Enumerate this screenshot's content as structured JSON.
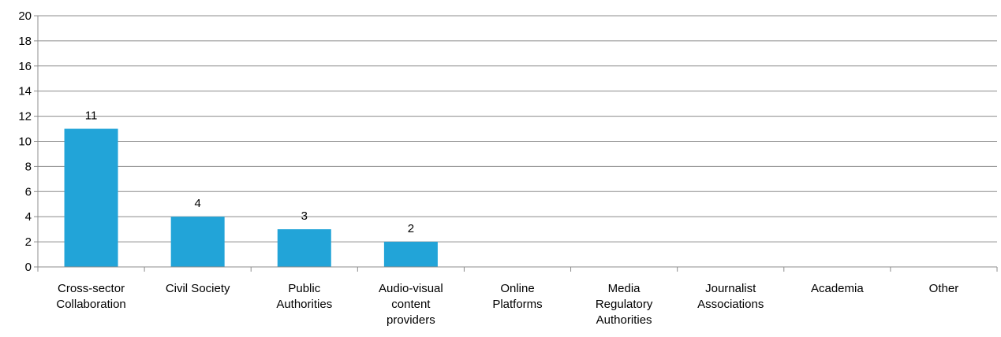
{
  "chart_data": {
    "type": "bar",
    "categories": [
      [
        "Cross-sector",
        "Collaboration"
      ],
      [
        "Civil Society"
      ],
      [
        "Public",
        "Authorities"
      ],
      [
        "Audio-visual",
        "content",
        "providers"
      ],
      [
        "Online",
        "Platforms"
      ],
      [
        "Media",
        "Regulatory",
        "Authorities"
      ],
      [
        "Journalist",
        "Associations"
      ],
      [
        "Academia"
      ],
      [
        "Other"
      ]
    ],
    "values": [
      11,
      4,
      3,
      2,
      0,
      0,
      0,
      0,
      0
    ],
    "data_labels": [
      "11",
      "4",
      "3",
      "2",
      "",
      "",
      "",
      "",
      ""
    ],
    "ylim": [
      0,
      20
    ],
    "ytick_step": 2,
    "grid": true,
    "legend": "none",
    "colors": {
      "bar": "#22a4d8",
      "grid": "#8c8c8c",
      "axis": "#8c8c8c"
    }
  }
}
